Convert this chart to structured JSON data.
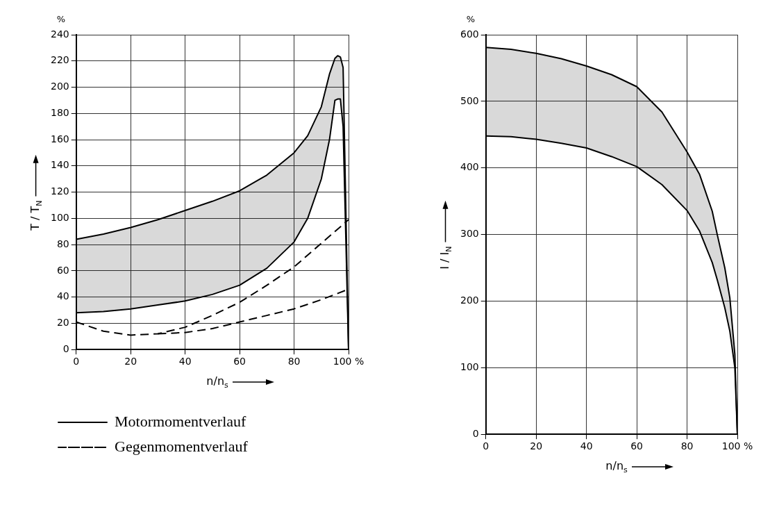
{
  "chart_data": [
    {
      "type": "line",
      "xlabel": "n/n$_{s}$",
      "ylabel": "T / T$_{N}$",
      "annotations": [
        "%"
      ],
      "xlim": [
        0,
        100
      ],
      "xticks": [
        0,
        20,
        40,
        60,
        80,
        {
          "value": 100,
          "label": "100 %"
        }
      ],
      "ylim": [
        0,
        240
      ],
      "yticks": [
        0,
        20,
        40,
        60,
        80,
        100,
        120,
        140,
        160,
        180,
        200,
        220,
        240
      ],
      "grid": true,
      "legend": "bottom",
      "marker": "none",
      "series": [
        {
          "name": "Motormomentverlauf",
          "color": "#000000",
          "line_style": "solid",
          "x": [
            0,
            10,
            20,
            30,
            40,
            50,
            60,
            70,
            80,
            85,
            90,
            93,
            95,
            96,
            97,
            98,
            100
          ],
          "values": [
            84,
            88,
            93,
            99,
            106,
            113,
            121,
            133,
            150,
            163,
            185,
            210,
            222,
            224,
            223,
            215,
            0
          ],
          "upper": [
            84,
            88,
            93,
            99,
            106,
            113,
            121,
            133,
            150,
            163,
            185,
            210,
            222,
            224,
            223,
            215,
            0
          ],
          "lower": [
            28,
            29,
            31,
            34,
            37,
            42,
            49,
            62,
            82,
            100,
            130,
            160,
            190,
            191,
            191,
            170,
            0
          ]
        },
        {
          "color": "#000000",
          "line_style": "solid",
          "x": [
            0,
            10,
            20,
            30,
            40,
            50,
            60,
            70,
            80,
            85,
            90,
            93,
            95,
            96,
            97,
            98,
            100
          ],
          "values": [
            28,
            29,
            31,
            34,
            37,
            42,
            49,
            62,
            82,
            100,
            130,
            160,
            190,
            191,
            191,
            170,
            0
          ]
        },
        {
          "name": "Gegenmomentverlauf",
          "color": "#000000",
          "line_style": "dashed",
          "x": [
            0,
            10,
            20,
            30,
            40,
            50,
            60,
            70,
            80,
            90,
            100
          ],
          "values": [
            21,
            14,
            11,
            12,
            17,
            26,
            36,
            49,
            63,
            81,
            99
          ]
        },
        {
          "color": "#000000",
          "line_style": "dashed",
          "x": [
            30,
            40,
            50,
            60,
            70,
            80,
            90,
            100
          ],
          "values": [
            12,
            13,
            16,
            21,
            26,
            31,
            38,
            46
          ]
        }
      ]
    },
    {
      "type": "line",
      "xlabel": "n/n$_{s}$",
      "ylabel": "I / I$_{N}$",
      "annotations": [
        "%"
      ],
      "xlim": [
        0,
        100
      ],
      "xticks": [
        0,
        20,
        40,
        60,
        80,
        {
          "value": 100,
          "label": "100 %"
        }
      ],
      "ylim": [
        0,
        600
      ],
      "yticks": [
        0,
        100,
        200,
        300,
        400,
        500,
        600
      ],
      "grid": true,
      "legend": false,
      "marker": "none",
      "series": [
        {
          "color": "#000000",
          "line_style": "solid",
          "x": [
            0,
            10,
            20,
            30,
            40,
            50,
            60,
            70,
            80,
            85,
            90,
            92,
            95,
            97,
            99,
            100
          ],
          "values": [
            581,
            578,
            572,
            564,
            553,
            540,
            522,
            484,
            424,
            390,
            335,
            300,
            250,
            205,
            120,
            0
          ],
          "upper": [
            581,
            578,
            572,
            564,
            553,
            540,
            522,
            484,
            424,
            390,
            335,
            300,
            250,
            205,
            120,
            0
          ],
          "lower": [
            448,
            447,
            443,
            437,
            430,
            417,
            402,
            375,
            336,
            305,
            258,
            232,
            190,
            155,
            100,
            0
          ]
        },
        {
          "color": "#000000",
          "line_style": "solid",
          "x": [
            0,
            10,
            20,
            30,
            40,
            50,
            60,
            70,
            80,
            85,
            90,
            92,
            95,
            97,
            99,
            100
          ],
          "values": [
            448,
            447,
            443,
            437,
            430,
            417,
            402,
            375,
            336,
            305,
            258,
            232,
            190,
            155,
            100,
            0
          ]
        }
      ]
    }
  ]
}
